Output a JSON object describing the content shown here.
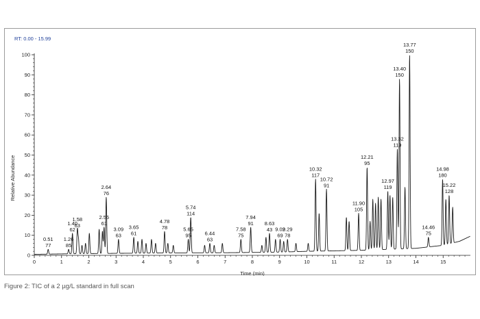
{
  "figure": {
    "caption": "Figure 2: TIC of a 2 µg/L standard in full scan"
  },
  "chart_data": {
    "type": "line",
    "rt_label": "RT: 0.00 - 15.99",
    "xlabel": "Time (min)",
    "ylabel": "Relative Abundance",
    "xlim": [
      0,
      16
    ],
    "ylim": [
      0,
      100
    ],
    "x_ticks": [
      "0",
      "1",
      "2",
      "3",
      "4",
      "5",
      "6",
      "7",
      "8",
      "9",
      "10",
      "11",
      "12",
      "13",
      "14",
      "15"
    ],
    "y_ticks": [
      "0",
      "10",
      "20",
      "30",
      "40",
      "50",
      "60",
      "70",
      "80",
      "90",
      "100"
    ],
    "grid": false,
    "line_color": "#1a1a1a",
    "label_color": "#111111",
    "leader_color": "#3a9a3a",
    "baseline": [
      [
        0,
        0.5
      ],
      [
        1.4,
        0.8
      ],
      [
        3.0,
        1.0
      ],
      [
        5.0,
        1.2
      ],
      [
        7.0,
        1.3
      ],
      [
        9.0,
        1.6
      ],
      [
        10.0,
        2.0
      ],
      [
        12.0,
        2.5
      ],
      [
        14.0,
        3.5
      ],
      [
        15.0,
        5.0
      ],
      [
        15.6,
        7.0
      ],
      [
        15.99,
        9.5
      ]
    ],
    "peaks": [
      {
        "rt": 0.51,
        "h": 3,
        "label_rt": "0.51",
        "label_mz": "77"
      },
      {
        "rt": 1.26,
        "h": 3,
        "label_rt": "1.26",
        "label_mz": "85"
      },
      {
        "rt": 1.4,
        "h": 11,
        "label_rt": "1.40",
        "label_mz": "62"
      },
      {
        "rt": 1.58,
        "h": 13,
        "label_rt": "1.58",
        "label_mz": "63"
      },
      {
        "rt": 1.62,
        "h": 8
      },
      {
        "rt": 1.75,
        "h": 5
      },
      {
        "rt": 1.88,
        "h": 6
      },
      {
        "rt": 2.02,
        "h": 11
      },
      {
        "rt": 2.38,
        "h": 13
      },
      {
        "rt": 2.56,
        "h": 14,
        "label_rt": "2.56",
        "label_mz": "61"
      },
      {
        "rt": 2.5,
        "h": 12
      },
      {
        "rt": 2.64,
        "h": 29,
        "label_rt": "2.64",
        "label_mz": "76"
      },
      {
        "rt": 3.09,
        "h": 8,
        "label_rt": "3.09",
        "label_mz": "63"
      },
      {
        "rt": 3.65,
        "h": 9,
        "label_rt": "3.65",
        "label_mz": "61"
      },
      {
        "rt": 3.8,
        "h": 7
      },
      {
        "rt": 3.95,
        "h": 8
      },
      {
        "rt": 4.1,
        "h": 6
      },
      {
        "rt": 4.3,
        "h": 8
      },
      {
        "rt": 4.45,
        "h": 6
      },
      {
        "rt": 4.78,
        "h": 12,
        "label_rt": "4.78",
        "label_mz": "78"
      },
      {
        "rt": 4.9,
        "h": 6
      },
      {
        "rt": 5.1,
        "h": 5
      },
      {
        "rt": 5.65,
        "h": 8,
        "label_rt": "5.65",
        "label_mz": "95"
      },
      {
        "rt": 5.74,
        "h": 19,
        "label_rt": "5.74",
        "label_mz": "114"
      },
      {
        "rt": 6.25,
        "h": 5
      },
      {
        "rt": 6.44,
        "h": 6,
        "label_rt": "6.44",
        "label_mz": "63"
      },
      {
        "rt": 6.6,
        "h": 5
      },
      {
        "rt": 6.9,
        "h": 6
      },
      {
        "rt": 7.58,
        "h": 8,
        "label_rt": "7.58",
        "label_mz": "75"
      },
      {
        "rt": 7.94,
        "h": 14,
        "label_rt": "7.94",
        "label_mz": "91"
      },
      {
        "rt": 8.35,
        "h": 5
      },
      {
        "rt": 8.5,
        "h": 9
      },
      {
        "rt": 8.63,
        "h": 11,
        "label_rt": "8.63",
        "label_mz": "43"
      },
      {
        "rt": 8.85,
        "h": 8
      },
      {
        "rt": 9.02,
        "h": 8,
        "label_rt": "9.02",
        "label_mz": "69"
      },
      {
        "rt": 9.15,
        "h": 7
      },
      {
        "rt": 9.29,
        "h": 8,
        "label_rt": "9.29",
        "label_mz": "78"
      },
      {
        "rt": 9.6,
        "h": 6
      },
      {
        "rt": 10.05,
        "h": 6
      },
      {
        "rt": 10.32,
        "h": 38,
        "label_rt": "10.32",
        "label_mz": "117"
      },
      {
        "rt": 10.45,
        "h": 21
      },
      {
        "rt": 10.72,
        "h": 33,
        "label_rt": "10.72",
        "label_mz": "91"
      },
      {
        "rt": 11.45,
        "h": 19
      },
      {
        "rt": 11.55,
        "h": 17
      },
      {
        "rt": 11.9,
        "h": 21,
        "label_rt": "11.90",
        "label_mz": "105"
      },
      {
        "rt": 12.21,
        "h": 44,
        "label_rt": "12.21",
        "label_mz": "95"
      },
      {
        "rt": 12.32,
        "h": 17
      },
      {
        "rt": 12.42,
        "h": 28
      },
      {
        "rt": 12.52,
        "h": 26
      },
      {
        "rt": 12.62,
        "h": 29
      },
      {
        "rt": 12.72,
        "h": 28
      },
      {
        "rt": 12.97,
        "h": 32,
        "label_rt": "12.97",
        "label_mz": "119"
      },
      {
        "rt": 13.05,
        "h": 30
      },
      {
        "rt": 13.15,
        "h": 29
      },
      {
        "rt": 13.32,
        "h": 53,
        "label_rt": "13.32",
        "label_mz": "119"
      },
      {
        "rt": 13.4,
        "h": 88,
        "label_rt": "13.40",
        "label_mz": "150"
      },
      {
        "rt": 13.6,
        "h": 34
      },
      {
        "rt": 13.77,
        "h": 100,
        "label_rt": "13.77",
        "label_mz": "150"
      },
      {
        "rt": 14.46,
        "h": 9,
        "label_rt": "14.46",
        "label_mz": "75"
      },
      {
        "rt": 14.98,
        "h": 38,
        "label_rt": "14.98",
        "label_mz": "180"
      },
      {
        "rt": 15.1,
        "h": 28
      },
      {
        "rt": 15.22,
        "h": 30,
        "label_rt": "15.22",
        "label_mz": "128"
      },
      {
        "rt": 15.35,
        "h": 24
      }
    ]
  }
}
